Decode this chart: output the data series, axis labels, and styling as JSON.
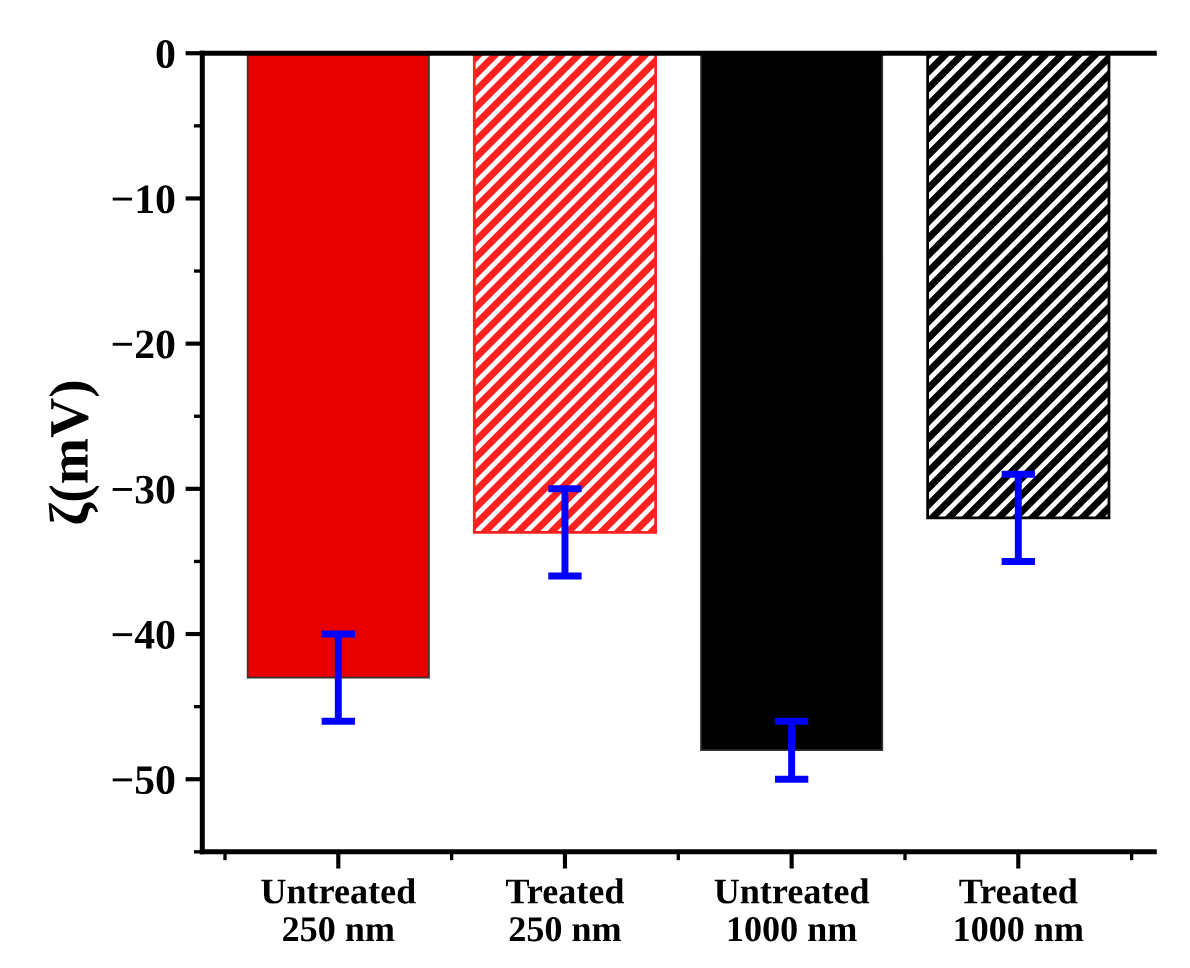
{
  "chart_data": {
    "type": "bar",
    "ylabel": "ζ(mV)",
    "categories": [
      "Untreated\n250 nm",
      "Treated\n250 nm",
      "Untreated\n1000 nm",
      "Treated\n1000 nm"
    ],
    "values": [
      -43,
      -33,
      -48,
      -32
    ],
    "errors": [
      3,
      3,
      2,
      3
    ],
    "colors": [
      "#e60000",
      "#ff2020",
      "#000000",
      "#000000"
    ],
    "ylim": [
      -55,
      0
    ],
    "yticks": [
      {
        "value": 0,
        "label": "0"
      },
      {
        "value": -10,
        "label": "−10"
      },
      {
        "value": -20,
        "label": "−20"
      },
      {
        "value": -30,
        "label": "−30"
      },
      {
        "value": -40,
        "label": "−40"
      },
      {
        "value": -50,
        "label": "−50"
      }
    ],
    "grid": false
  }
}
